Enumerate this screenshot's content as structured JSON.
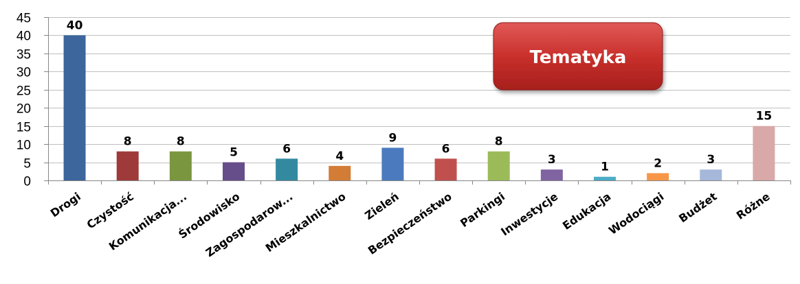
{
  "chart_data": {
    "type": "bar",
    "title": "Tematyka",
    "categories": [
      "Drogi",
      "Czystość",
      "Komunikacja...",
      "Środowisko",
      "Zagospodarow...",
      "Mieszkalnictwo",
      "Zieleń",
      "Bezpieczeństwo",
      "Parkingi",
      "Inwestycje",
      "Edukacja",
      "Wodociągi",
      "Budżet",
      "Różne"
    ],
    "values": [
      40,
      8,
      8,
      5,
      6,
      4,
      9,
      6,
      8,
      3,
      1,
      2,
      3,
      15
    ],
    "colors": [
      "#3c669c",
      "#9e3b3a",
      "#7a9740",
      "#654e8a",
      "#338aa0",
      "#d27c36",
      "#4b7bbe",
      "#c0504d",
      "#9bbb59",
      "#8064a2",
      "#4bacc6",
      "#f79646",
      "#a6b8da",
      "#d9a8a8"
    ],
    "title_box_color": "#c0312f",
    "ylim": [
      0,
      45
    ],
    "yticks": [
      0,
      5,
      10,
      15,
      20,
      25,
      30,
      35,
      40,
      45
    ],
    "xlabel": "",
    "ylabel": "",
    "grid": true,
    "legend": "none"
  }
}
